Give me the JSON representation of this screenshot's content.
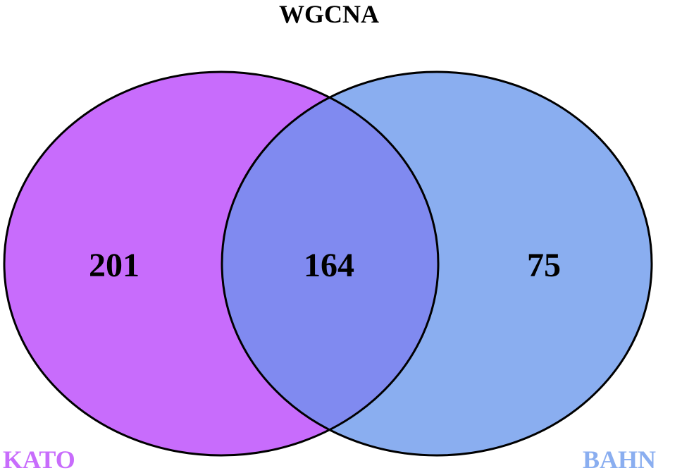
{
  "title": "WGCNA",
  "sets": [
    {
      "name": "KATO",
      "color": "#c86cfc"
    },
    {
      "name": "BAHN",
      "color": "#8aaef0"
    }
  ],
  "intersection_color": "#808af0",
  "outline_color": "#000000",
  "counts": {
    "kato_only": "201",
    "both": "164",
    "bahn_only": "75"
  }
}
